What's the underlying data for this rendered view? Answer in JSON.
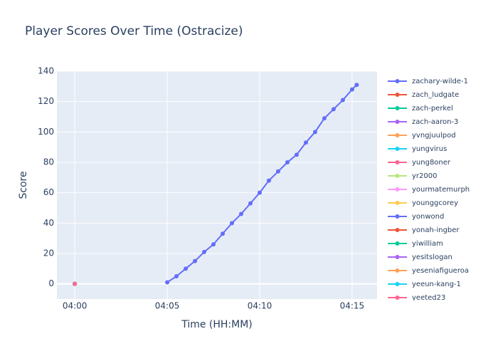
{
  "chart_data": {
    "type": "line",
    "title": "Player Scores Over Time (Ostracize)",
    "x_label": "Time (HH:MM)",
    "y_label": "Score",
    "xlim": [
      "03:59:02",
      "04:16:21"
    ],
    "xticks": [
      "04:00",
      "04:05",
      "04:10",
      "04:15"
    ],
    "ylim": [
      -10,
      140
    ],
    "yticks": [
      0,
      20,
      40,
      60,
      80,
      100,
      120,
      140
    ],
    "grid": true,
    "legend": "right",
    "series": [
      {
        "name": "zachary-wilde-1",
        "color": "#636efa",
        "x": [
          "04:05:00",
          "04:05:30",
          "04:06:00",
          "04:06:30",
          "04:07:00",
          "04:07:30",
          "04:08:00",
          "04:08:30",
          "04:09:00",
          "04:09:30",
          "04:10:00",
          "04:10:30",
          "04:11:00",
          "04:11:30",
          "04:12:00",
          "04:12:30",
          "04:13:00",
          "04:13:30",
          "04:14:00",
          "04:14:30",
          "04:15:00",
          "04:15:15"
        ],
        "values": [
          1,
          5,
          10,
          15,
          21,
          26,
          33,
          40,
          46,
          53,
          60,
          68,
          74,
          80,
          85,
          93,
          100,
          109,
          115,
          121,
          128,
          131
        ]
      },
      {
        "name": "zach_ludgate",
        "color": "#EF553B",
        "x": [
          "04:00:00"
        ],
        "values": [
          0
        ]
      },
      {
        "name": "zach-perkel",
        "color": "#00cc96",
        "x": [
          "04:00:00"
        ],
        "values": [
          0
        ]
      },
      {
        "name": "zach-aaron-3",
        "color": "#ab63fa",
        "x": [
          "04:00:00"
        ],
        "values": [
          0
        ]
      },
      {
        "name": "yvngjuulpod",
        "color": "#FFA15A",
        "x": [
          "04:00:00"
        ],
        "values": [
          0
        ]
      },
      {
        "name": "yungvirus",
        "color": "#19d3f3",
        "x": [
          "04:00:00"
        ],
        "values": [
          0
        ]
      },
      {
        "name": "yung8oner",
        "color": "#FF6692",
        "x": [
          "04:00:00"
        ],
        "values": [
          0
        ]
      },
      {
        "name": "yr2000",
        "color": "#B6E880",
        "x": [
          "04:00:00"
        ],
        "values": [
          0
        ]
      },
      {
        "name": "yourmatemurph",
        "color": "#FF97FF",
        "x": [
          "04:00:00"
        ],
        "values": [
          0
        ]
      },
      {
        "name": "younggcorey",
        "color": "#FECB52",
        "x": [
          "04:00:00"
        ],
        "values": [
          0
        ]
      },
      {
        "name": "yonwond",
        "color": "#636efa",
        "x": [
          "04:00:00"
        ],
        "values": [
          0
        ]
      },
      {
        "name": "yonah-ingber",
        "color": "#EF553B",
        "x": [
          "04:00:00"
        ],
        "values": [
          0
        ]
      },
      {
        "name": "yiwilliam",
        "color": "#00cc96",
        "x": [
          "04:00:00"
        ],
        "values": [
          0
        ]
      },
      {
        "name": "yesitslogan",
        "color": "#ab63fa",
        "x": [
          "04:00:00"
        ],
        "values": [
          0
        ]
      },
      {
        "name": "yeseniafigueroa",
        "color": "#FFA15A",
        "x": [
          "04:00:00"
        ],
        "values": [
          0
        ]
      },
      {
        "name": "yeeun-kang-1",
        "color": "#19d3f3",
        "x": [
          "04:00:00"
        ],
        "values": [
          0
        ]
      },
      {
        "name": "yeeted23",
        "color": "#FF6692",
        "x": [
          "04:00:00"
        ],
        "values": [
          0
        ]
      }
    ]
  }
}
